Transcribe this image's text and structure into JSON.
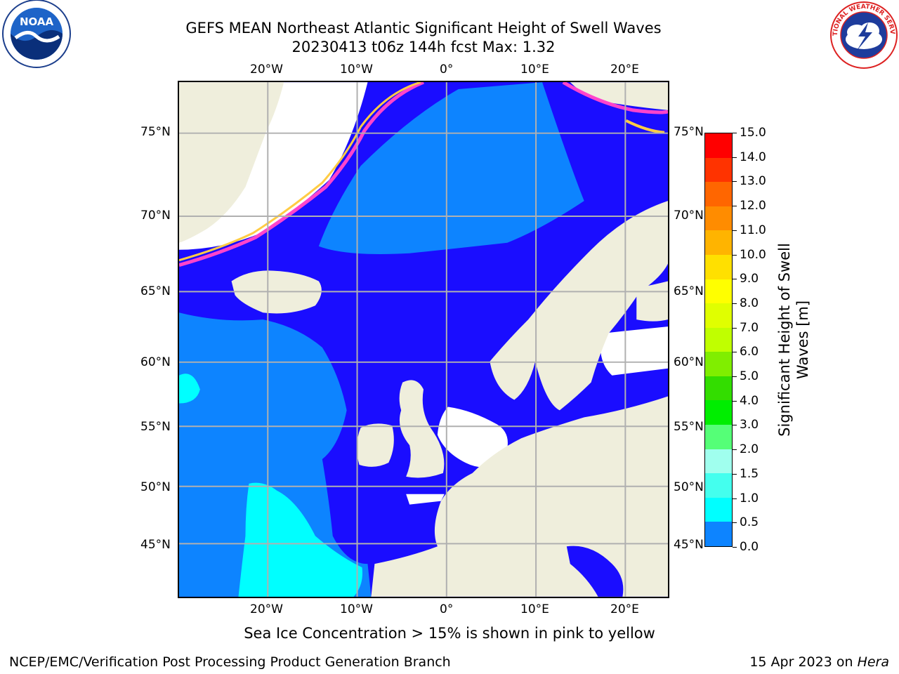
{
  "header": {
    "title_line1": "GEFS MEAN Northeast Atlantic Significant Height of Swell Waves",
    "title_line2": "20230413 t06z 144h fcst   Max: 1.32"
  },
  "logos": {
    "left": {
      "text": "NOAA",
      "icon": "noaa-logo"
    },
    "right": {
      "text": "NATIONAL WEATHER SERVICE",
      "icon": "nws-logo"
    }
  },
  "map": {
    "lon_labels": [
      "20°W",
      "10°W",
      "0°",
      "10°E",
      "20°E"
    ],
    "lat_labels": [
      "75°N",
      "70°N",
      "65°N",
      "60°N",
      "55°N",
      "50°N",
      "45°N"
    ],
    "colors": {
      "ocean_low": "#1a0dff",
      "ocean_mid": "#0d84ff",
      "ocean_high": "#00ffff",
      "land": "#efeedc",
      "no_data": "#ffffff",
      "grid": "#b0b0b0"
    }
  },
  "colorbar": {
    "ticks": [
      "15.0",
      "14.0",
      "13.0",
      "12.0",
      "11.0",
      "10.0",
      "9.0",
      "8.0",
      "7.0",
      "6.0",
      "5.0",
      "4.0",
      "3.0",
      "2.0",
      "1.5",
      "1.0",
      "0.5",
      "0.0"
    ],
    "colors": [
      "#ff0000",
      "#ff3300",
      "#ff6600",
      "#ff8c00",
      "#ffb400",
      "#ffe000",
      "#ffff00",
      "#e0ff00",
      "#c0ff00",
      "#80ee00",
      "#33dd00",
      "#00ee00",
      "#55ff77",
      "#a0ffee",
      "#44ffee",
      "#00ffff",
      "#0d84ff",
      "#1a0dff"
    ],
    "label": "Significant Height of Swell Waves [m]",
    "label_line1": "Significant Height of Swell",
    "label_line2": "Waves [m]"
  },
  "footer": {
    "note": "Sea Ice Concentration > 15% is shown in pink to yellow",
    "credit": "NCEP/EMC/Verification Post Processing Product Generation Branch",
    "date_prefix": "15 Apr 2023 on ",
    "date_host": "Hera"
  }
}
